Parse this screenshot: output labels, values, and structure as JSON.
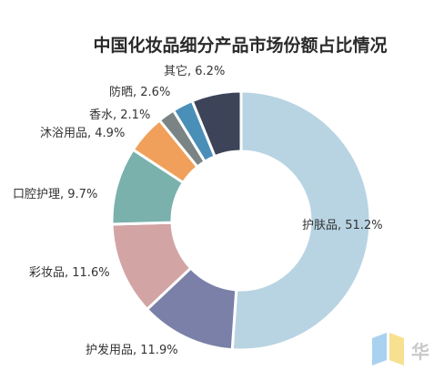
{
  "chart_data": {
    "type": "pie",
    "title": "中国化妆品细分产品市场份额占比情况",
    "legend": "none",
    "donut": true,
    "slices": [
      {
        "label": "护肤品, 51.2%",
        "value": 51.2,
        "color": "#b8d4e3"
      },
      {
        "label": "护发用品, 11.9%",
        "value": 11.9,
        "color": "#7a80a8"
      },
      {
        "label": "彩妆品, 11.6%",
        "value": 11.6,
        "color": "#d3a4a4"
      },
      {
        "label": "口腔护理, 9.7%",
        "value": 9.7,
        "color": "#7ab1ad"
      },
      {
        "label": "沐浴用品, 4.9%",
        "value": 4.9,
        "color": "#f0a05a"
      },
      {
        "label": "香水, 2.1%",
        "value": 2.1,
        "color": "#7a8485"
      },
      {
        "label": "防晒, 2.6%",
        "value": 2.6,
        "color": "#4a8fb8"
      },
      {
        "label": "其它, 6.2%",
        "value": 6.2,
        "color": "#3d4459"
      }
    ]
  },
  "watermark": {
    "text": "华",
    "colors": [
      "#a9d2f0",
      "#f7e08f"
    ]
  }
}
